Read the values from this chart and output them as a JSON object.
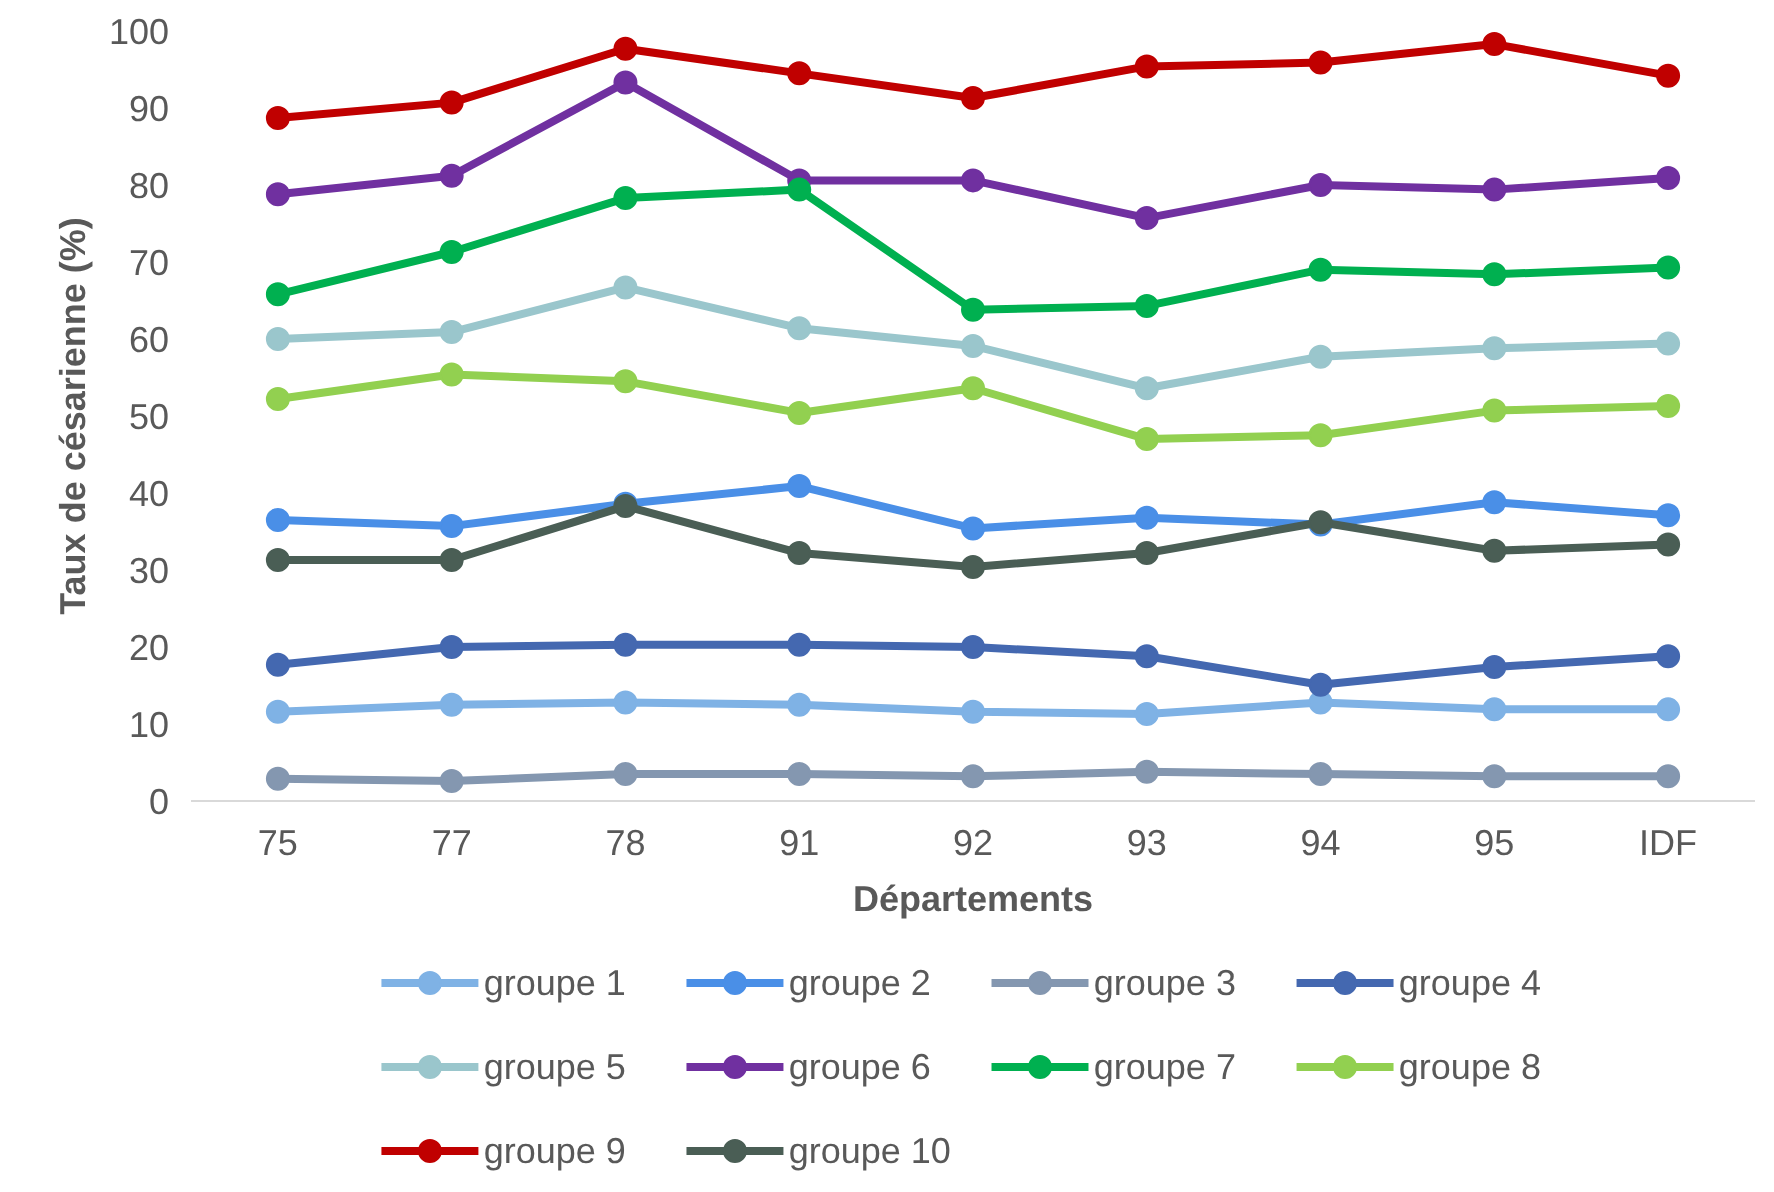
{
  "chart_data": {
    "type": "line",
    "xlabel": "Départements",
    "ylabel": "Taux de césarienne (%)",
    "categories": [
      "75",
      "77",
      "78",
      "91",
      "92",
      "93",
      "94",
      "95",
      "IDF"
    ],
    "ylim": [
      0,
      100
    ],
    "yticks": [
      0,
      10,
      20,
      30,
      40,
      50,
      60,
      70,
      80,
      90,
      100
    ],
    "grid": false,
    "legend": "bottom",
    "marker": "circle",
    "line_style": "solid",
    "series": [
      {
        "name": "groupe 1",
        "color": "#7fb2e5",
        "values": [
          11.6,
          12.5,
          12.8,
          12.5,
          11.6,
          11.3,
          12.8,
          11.9,
          11.9
        ]
      },
      {
        "name": "groupe 2",
        "color": "#4a8fe7",
        "values": [
          36.5,
          35.7,
          38.6,
          40.9,
          35.4,
          36.8,
          35.9,
          38.8,
          37.1
        ]
      },
      {
        "name": "groupe 3",
        "color": "#8497b0",
        "values": [
          2.9,
          2.6,
          3.5,
          3.5,
          3.2,
          3.8,
          3.5,
          3.2,
          3.2
        ]
      },
      {
        "name": "groupe 4",
        "color": "#4468b0",
        "values": [
          17.7,
          20.0,
          20.3,
          20.3,
          20.0,
          18.8,
          15.1,
          17.4,
          18.8
        ]
      },
      {
        "name": "groupe 5",
        "color": "#9ac6cc",
        "values": [
          60.0,
          60.9,
          66.7,
          61.4,
          59.1,
          53.6,
          57.7,
          58.8,
          59.4
        ]
      },
      {
        "name": "groupe 6",
        "color": "#7030a0",
        "values": [
          78.8,
          81.2,
          93.3,
          80.6,
          80.6,
          75.7,
          80.0,
          79.4,
          80.9
        ]
      },
      {
        "name": "groupe 7",
        "color": "#00b050",
        "values": [
          65.8,
          71.3,
          78.3,
          79.4,
          63.8,
          64.3,
          69.0,
          68.4,
          69.3
        ]
      },
      {
        "name": "groupe 8",
        "color": "#92d050",
        "values": [
          52.2,
          55.4,
          54.5,
          50.4,
          53.6,
          47.0,
          47.5,
          50.7,
          51.3
        ]
      },
      {
        "name": "groupe 9",
        "color": "#c00000",
        "values": [
          88.7,
          90.7,
          97.7,
          94.5,
          91.3,
          95.4,
          95.9,
          98.3,
          94.2
        ]
      },
      {
        "name": "groupe 10",
        "color": "#4a5e55",
        "values": [
          31.3,
          31.3,
          38.3,
          32.2,
          30.4,
          32.2,
          36.2,
          32.5,
          33.3
        ]
      }
    ]
  }
}
